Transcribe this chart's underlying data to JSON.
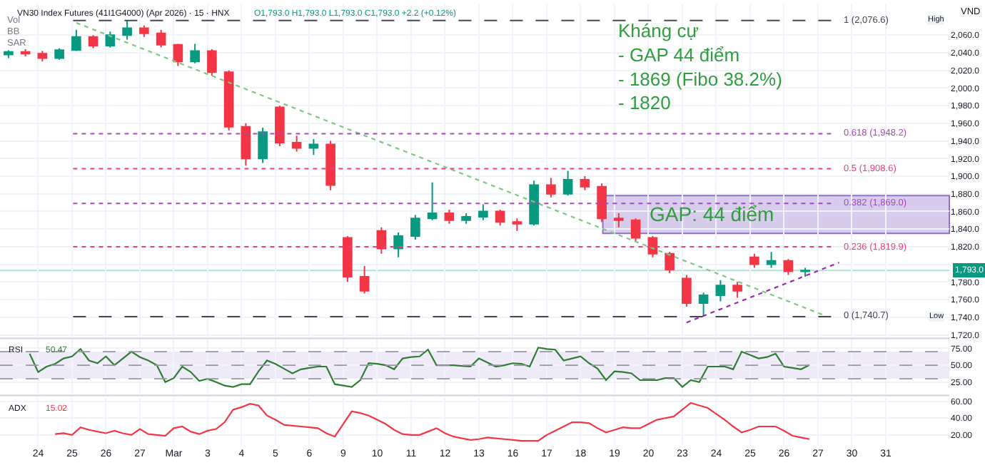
{
  "chart_data": [
    {
      "type": "candlestick",
      "title": "VN30 Index Futures (41I1G4000) (Apr 2026) · 15 · HNX",
      "subtitle": "O1,793.0 H1,793.0 L1,793.0 C1,793.0 +2.2 (+0.12%)",
      "annotations": [
        "Vol",
        "BB",
        "SAR",
        "Kháng cự\n- GAP 44 điểm\n- 1869 (Fibo 38.2%)\n- 1820",
        "VND",
        "High",
        "Low"
      ],
      "categories": [
        null,
        null,
        null,
        null,
        null,
        null,
        null,
        null,
        null,
        null,
        null,
        null,
        null,
        null,
        null,
        null,
        null,
        null,
        null,
        null,
        null,
        null,
        null,
        null,
        null,
        null,
        null,
        null,
        null,
        null,
        null,
        null,
        null,
        null,
        null,
        null,
        null,
        null,
        null,
        null,
        null,
        null,
        null,
        null,
        null,
        null,
        null,
        null,
        null,
        null,
        null,
        null,
        null,
        null,
        null,
        null
      ],
      "ohlc": [
        [
          2038,
          2043,
          2034,
          2041
        ],
        [
          2041,
          2044,
          2036,
          2039
        ],
        [
          2039,
          2042,
          2030,
          2034
        ],
        [
          2034,
          2045,
          2032,
          2043
        ],
        [
          2043,
          2066,
          2042,
          2058
        ],
        [
          2058,
          2060,
          2045,
          2048
        ],
        [
          2048,
          2064,
          2046,
          2060
        ],
        [
          2060,
          2076.6,
          2055,
          2068
        ],
        [
          2068,
          2071,
          2058,
          2062
        ],
        [
          2062,
          2066,
          2046,
          2049
        ],
        [
          2049,
          2050,
          2025,
          2030
        ],
        [
          2030,
          2050,
          2028,
          2042
        ],
        [
          2042,
          2044,
          2014,
          2018
        ],
        [
          2018,
          2020,
          1952,
          1956
        ],
        [
          1956,
          1960,
          1912,
          1920
        ],
        [
          1920,
          1955,
          1915,
          1950
        ],
        [
          1978,
          1980,
          1934,
          1938
        ],
        [
          1938,
          1946,
          1928,
          1932
        ],
        [
          1932,
          1942,
          1924,
          1936
        ],
        [
          1936,
          1940,
          1884,
          1890
        ],
        [
          1830,
          1832,
          1780,
          1786
        ],
        [
          1786,
          1798,
          1767,
          1770
        ],
        [
          1838,
          1842,
          1812,
          1818
        ],
        [
          1818,
          1836,
          1808,
          1832
        ],
        [
          1832,
          1856,
          1828,
          1852
        ],
        [
          1852,
          1893,
          1850,
          1858
        ],
        [
          1858,
          1862,
          1846,
          1850
        ],
        [
          1850,
          1858,
          1846,
          1854
        ],
        [
          1854,
          1868,
          1850,
          1860
        ],
        [
          1860,
          1862,
          1844,
          1848
        ],
        [
          1848,
          1852,
          1838,
          1846
        ],
        [
          1846,
          1895,
          1844,
          1890
        ],
        [
          1890,
          1898,
          1876,
          1880
        ],
        [
          1880,
          1906,
          1878,
          1896
        ],
        [
          1896,
          1900,
          1884,
          1888
        ],
        [
          1888,
          1892,
          1848,
          1852
        ],
        [
          1852,
          1858,
          1842,
          1850
        ],
        [
          1850,
          1852,
          1826,
          1830
        ],
        [
          1830,
          1832,
          1808,
          1812
        ],
        [
          1812,
          1814,
          1790,
          1794
        ],
        [
          1784,
          1788,
          1752,
          1756
        ],
        [
          1756,
          1768,
          1740.7,
          1765
        ],
        [
          1765,
          1782,
          1758,
          1776
        ],
        [
          1776,
          1780,
          1762,
          1770
        ],
        [
          1808,
          1812,
          1796,
          1800
        ],
        [
          1800,
          1814,
          1796,
          1804
        ],
        [
          1804,
          1806,
          1788,
          1792
        ],
        [
          1792,
          1796,
          1786,
          1793
        ],
        null,
        null,
        null,
        null,
        null,
        null,
        null,
        null
      ],
      "series": [
        {
          "type": "line",
          "color": "#81c784",
          "line_style": "dotted",
          "values": [
            null,
            null,
            null,
            null,
            2074,
            null,
            null,
            null,
            null,
            null,
            null,
            null,
            null,
            null,
            null,
            null,
            null,
            null,
            null,
            null,
            null,
            null,
            null,
            null,
            null,
            null,
            null,
            null,
            null,
            null,
            null,
            null,
            null,
            null,
            null,
            null,
            null,
            null,
            null,
            null,
            null,
            null,
            null,
            null,
            null,
            null,
            null,
            null,
            1743,
            null,
            null,
            null,
            null,
            null,
            null,
            null
          ]
        },
        {
          "type": "line",
          "color": "#9c27b0",
          "line_style": "dotted",
          "values": [
            null,
            null,
            null,
            null,
            null,
            null,
            null,
            null,
            null,
            null,
            null,
            null,
            null,
            null,
            null,
            null,
            null,
            null,
            null,
            null,
            null,
            null,
            null,
            null,
            null,
            null,
            null,
            null,
            null,
            null,
            null,
            null,
            null,
            null,
            null,
            null,
            null,
            null,
            null,
            null,
            1734,
            null,
            null,
            null,
            null,
            null,
            null,
            null,
            null,
            1802,
            null,
            null,
            null,
            null,
            null,
            null
          ]
        }
      ],
      "ref_lines": [
        {
          "axis": "y",
          "value": 2076.6,
          "label": "1 (2,076.6)",
          "color": "#434651",
          "line_style": "dashed"
        },
        {
          "axis": "y",
          "value": 1948.2,
          "label": "0.618 (1,948.2)",
          "color": "#ab47bc",
          "line_style": "dotted"
        },
        {
          "axis": "y",
          "value": 1908.6,
          "label": "0.5 (1,908.6)",
          "color": "#ec407a",
          "line_style": "dotted"
        },
        {
          "axis": "y",
          "value": 1869.0,
          "label": "0.382 (1,869.0)",
          "color": "#ab47bc",
          "line_style": "dotted"
        },
        {
          "axis": "y",
          "value": 1819.9,
          "label": "0.236 (1,819.9)",
          "color": "#ec407a",
          "line_style": "dotted"
        },
        {
          "axis": "y",
          "value": 1740.7,
          "label": "0 (1,740.7)",
          "color": "#434651",
          "line_style": "dashed"
        },
        {
          "axis": "y",
          "value": 1793.0,
          "label": "1,793.0",
          "color": "#b2dfdb",
          "line_style": "solid"
        }
      ],
      "bands": [
        {
          "axis": "y",
          "from": 1835,
          "to": 1878,
          "label": "GAP: 44 điểm",
          "color": "#d1c4e9"
        }
      ],
      "ylim": [
        1718,
        2095
      ],
      "yticks": [
        {
          "value": 1720,
          "label": "1,720.0"
        },
        {
          "value": 1740,
          "label": "1,740.0"
        },
        {
          "value": 1760,
          "label": "1,760.0"
        },
        {
          "value": 1780,
          "label": "1,780.0"
        },
        {
          "value": 1800,
          "label": null
        },
        {
          "value": 1820,
          "label": "1,820.0"
        },
        {
          "value": 1840,
          "label": "1,840.0"
        },
        {
          "value": 1860,
          "label": "1,860.0"
        },
        {
          "value": 1880,
          "label": "1,880.0"
        },
        {
          "value": 1900,
          "label": "1,900.0"
        },
        {
          "value": 1920,
          "label": "1,920.0"
        },
        {
          "value": 1940,
          "label": "1,940.0"
        },
        {
          "value": 1960,
          "label": "1,960.0"
        },
        {
          "value": 1980,
          "label": "1,980.0"
        },
        {
          "value": 2000,
          "label": "2,000.0"
        },
        {
          "value": 2020,
          "label": "2,020.0"
        },
        {
          "value": 2040,
          "label": "2,040.0"
        },
        {
          "value": 2060,
          "label": "2,060.0"
        }
      ],
      "tick_labels": "y",
      "grid": true
    },
    {
      "type": "line",
      "title": "RSI",
      "annotations": [
        "50.47"
      ],
      "categories": [
        null,
        null,
        null,
        null,
        null,
        null,
        null,
        null,
        null,
        null,
        null,
        null,
        null,
        null,
        null,
        null,
        null,
        null,
        null,
        null,
        null,
        null,
        null,
        null,
        null,
        null,
        null,
        null,
        null,
        null,
        null,
        null,
        null,
        null,
        null,
        null,
        null,
        null,
        null,
        null,
        null,
        null,
        null,
        null,
        null,
        null,
        null,
        null,
        null,
        null,
        null,
        null,
        null,
        null,
        null,
        null,
        null,
        null,
        null,
        null,
        null,
        null,
        null,
        null,
        null,
        null,
        null,
        null,
        null,
        null,
        null,
        null,
        null,
        null,
        null,
        null,
        null,
        null,
        null,
        null,
        null,
        null,
        null,
        null,
        null,
        null,
        null,
        null,
        null,
        null,
        null,
        null,
        null,
        null,
        null,
        null,
        null,
        null,
        null,
        null,
        null,
        null,
        null,
        null,
        null,
        null,
        null,
        null,
        null,
        null,
        null,
        null
      ],
      "series": [
        {
          "color": "#2e7d32",
          "values": [
            null,
            null,
            null,
            67,
            40,
            48,
            52,
            60,
            63,
            74,
            57,
            53,
            63,
            50,
            60,
            70,
            62,
            57,
            50,
            25,
            31,
            48,
            40,
            27,
            30,
            25,
            20,
            18,
            22,
            22,
            41,
            57,
            52,
            45,
            38,
            44,
            46,
            48,
            48,
            22,
            20,
            18,
            28,
            53,
            52,
            50,
            44,
            60,
            62,
            63,
            73,
            50,
            50,
            50,
            49,
            48,
            60,
            54,
            48,
            50,
            53,
            52,
            48,
            76,
            74,
            73,
            57,
            60,
            63,
            53,
            45,
            28,
            41,
            40,
            38,
            28,
            28,
            28,
            31,
            31,
            18,
            28,
            25,
            48,
            48,
            48,
            44,
            70,
            65,
            60,
            62,
            67,
            48,
            46,
            44,
            50.47,
            null,
            null,
            null,
            null,
            null,
            null,
            null,
            null,
            null,
            null,
            null,
            null,
            null,
            null,
            null,
            null
          ]
        }
      ],
      "bands": [
        {
          "axis": "y",
          "from": 30,
          "to": 70,
          "color": "#ede7f6"
        }
      ],
      "ref_lines": [
        {
          "axis": "y",
          "value": 70,
          "color": "#9598a1",
          "line_style": "dashed"
        },
        {
          "axis": "y",
          "value": 50,
          "color": "#9598a1",
          "line_style": "dashed"
        },
        {
          "axis": "y",
          "value": 30,
          "color": "#9598a1",
          "line_style": "dashed"
        }
      ],
      "ylim": [
        8,
        88
      ],
      "yticks": [
        {
          "value": 25,
          "label": "25.00"
        },
        {
          "value": 50,
          "label": "50.00"
        },
        {
          "value": 75,
          "label": "75.00"
        }
      ],
      "tick_labels": "y",
      "grid": true
    },
    {
      "type": "line",
      "title": "ADX",
      "annotations": [
        "15.02"
      ],
      "categories": [
        null,
        null,
        null,
        null,
        "24",
        null,
        null,
        null,
        "25",
        null,
        null,
        null,
        "26",
        null,
        null,
        null,
        "27",
        null,
        null,
        null,
        "Mar",
        null,
        null,
        null,
        "3",
        null,
        null,
        null,
        "4",
        null,
        null,
        null,
        "5",
        null,
        null,
        null,
        "6",
        null,
        null,
        null,
        "9",
        null,
        null,
        null,
        "10",
        null,
        null,
        null,
        "11",
        null,
        null,
        null,
        "12",
        null,
        null,
        null,
        "13",
        null,
        null,
        null,
        "16",
        null,
        null,
        null,
        "17",
        null,
        null,
        null,
        "18",
        null,
        null,
        null,
        "19",
        null,
        null,
        null,
        "20",
        null,
        null,
        null,
        "23",
        null,
        null,
        null,
        "24",
        null,
        null,
        null,
        "25",
        null,
        null,
        null,
        "26",
        null,
        null,
        null,
        "27",
        null,
        null,
        null,
        "30",
        null,
        null,
        null,
        "31",
        null,
        null,
        null,
        null,
        null,
        null,
        null
      ],
      "series": [
        {
          "color": "#f23645",
          "values": [
            null,
            null,
            null,
            null,
            null,
            null,
            21,
            22,
            20,
            29,
            26,
            24,
            22,
            25,
            22,
            20,
            27,
            21,
            20,
            19,
            28,
            30,
            24,
            21,
            25,
            27,
            35,
            50,
            53,
            57,
            55,
            43,
            38,
            32,
            31,
            30,
            29,
            28,
            22,
            18,
            33,
            48,
            46,
            43,
            38,
            33,
            26,
            21,
            20,
            20,
            24,
            28,
            22,
            18,
            16,
            14,
            15,
            17,
            16,
            15,
            14,
            13,
            13,
            13,
            20,
            25,
            30,
            35,
            35,
            34,
            28,
            23,
            26,
            29,
            28,
            28,
            33,
            38,
            40,
            42,
            50,
            58,
            55,
            52,
            45,
            38,
            30,
            23,
            26,
            30,
            30,
            30,
            25,
            19,
            17,
            15.02,
            null,
            null,
            null,
            null,
            null,
            null,
            null,
            null,
            null,
            null,
            null,
            null,
            null,
            null,
            null,
            null
          ]
        }
      ],
      "ylim": [
        8,
        64
      ],
      "yticks": [
        {
          "value": 20,
          "label": "20.00"
        },
        {
          "value": 40,
          "label": "40.00"
        },
        {
          "value": 60,
          "label": "60.00"
        }
      ],
      "grid": true
    }
  ]
}
